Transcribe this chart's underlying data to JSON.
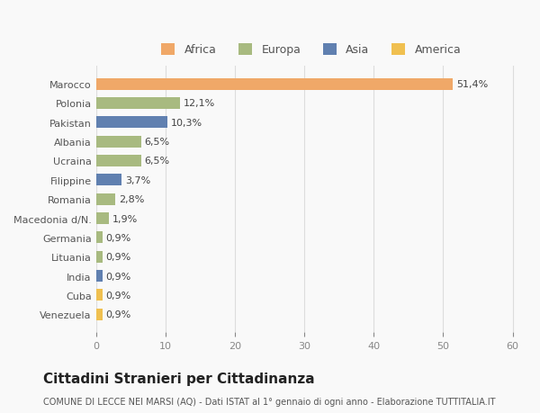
{
  "categories": [
    "Venezuela",
    "Cuba",
    "India",
    "Lituania",
    "Germania",
    "Macedonia d/N.",
    "Romania",
    "Filippine",
    "Ucraina",
    "Albania",
    "Pakistan",
    "Polonia",
    "Marocco"
  ],
  "values": [
    0.9,
    0.9,
    0.9,
    0.9,
    0.9,
    1.9,
    2.8,
    3.7,
    6.5,
    6.5,
    10.3,
    12.1,
    51.4
  ],
  "labels": [
    "0,9%",
    "0,9%",
    "0,9%",
    "0,9%",
    "0,9%",
    "1,9%",
    "2,8%",
    "3,7%",
    "6,5%",
    "6,5%",
    "10,3%",
    "12,1%",
    "51,4%"
  ],
  "colors": [
    "#F0C050",
    "#F0C050",
    "#6080B0",
    "#A8BA80",
    "#A8BA80",
    "#A8BA80",
    "#A8BA80",
    "#6080B0",
    "#A8BA80",
    "#A8BA80",
    "#6080B0",
    "#A8BA80",
    "#F0A868"
  ],
  "continent": [
    "America",
    "America",
    "Asia",
    "Europa",
    "Europa",
    "Europa",
    "Europa",
    "Asia",
    "Europa",
    "Europa",
    "Asia",
    "Europa",
    "Africa"
  ],
  "legend_labels": [
    "Africa",
    "Europa",
    "Asia",
    "America"
  ],
  "legend_colors": [
    "#F0A868",
    "#A8BA80",
    "#6080B0",
    "#F0C050"
  ],
  "title": "Cittadini Stranieri per Cittadinanza",
  "subtitle": "COMUNE DI LECCE NEI MARSI (AQ) - Dati ISTAT al 1° gennaio di ogni anno - Elaborazione TUTTITALIA.IT",
  "xlabel_ticks": [
    0,
    10,
    20,
    30,
    40,
    50,
    60
  ],
  "bg_color": "#f9f9f9",
  "bar_height": 0.6
}
